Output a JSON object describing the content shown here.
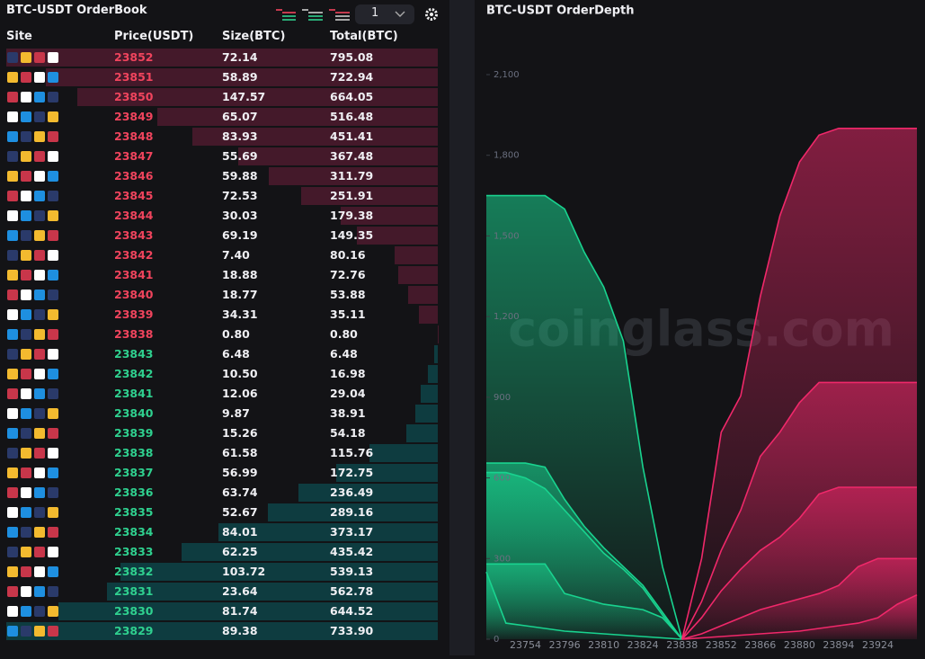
{
  "orderbook": {
    "title": "BTC-USDT OrderBook",
    "depth_select": "1",
    "columns": [
      "Site",
      "Price(USDT)",
      "Size(BTC)",
      "Total(BTC)"
    ],
    "asks": [
      [
        "23852",
        "72.14",
        "795.08"
      ],
      [
        "23851",
        "58.89",
        "722.94"
      ],
      [
        "23850",
        "147.57",
        "664.05"
      ],
      [
        "23849",
        "65.07",
        "516.48"
      ],
      [
        "23848",
        "83.93",
        "451.41"
      ],
      [
        "23847",
        "55.69",
        "367.48"
      ],
      [
        "23846",
        "59.88",
        "311.79"
      ],
      [
        "23845",
        "72.53",
        "251.91"
      ],
      [
        "23844",
        "30.03",
        "179.38"
      ],
      [
        "23843",
        "69.19",
        "149.35"
      ],
      [
        "23842",
        "7.40",
        "80.16"
      ],
      [
        "23841",
        "18.88",
        "72.76"
      ],
      [
        "23840",
        "18.77",
        "53.88"
      ],
      [
        "23839",
        "34.31",
        "35.11"
      ],
      [
        "23838",
        "0.80",
        "0.80"
      ]
    ],
    "bids": [
      [
        "23843",
        "6.48",
        "6.48"
      ],
      [
        "23842",
        "10.50",
        "16.98"
      ],
      [
        "23841",
        "12.06",
        "29.04"
      ],
      [
        "23840",
        "9.87",
        "38.91"
      ],
      [
        "23839",
        "15.26",
        "54.18"
      ],
      [
        "23838",
        "61.58",
        "115.76"
      ],
      [
        "23837",
        "56.99",
        "172.75"
      ],
      [
        "23836",
        "63.74",
        "236.49"
      ],
      [
        "23835",
        "52.67",
        "289.16"
      ],
      [
        "23834",
        "84.01",
        "373.17"
      ],
      [
        "23833",
        "62.25",
        "435.42"
      ],
      [
        "23832",
        "103.72",
        "539.13"
      ],
      [
        "23831",
        "23.64",
        "562.78"
      ],
      [
        "23830",
        "81.74",
        "644.52"
      ],
      [
        "23829",
        "89.38",
        "733.90"
      ]
    ]
  },
  "chart_data": {
    "type": "line",
    "title": "BTC-USDT OrderDepth",
    "watermark": "coinglass.com",
    "categories": [
      null,
      null,
      "23754",
      null,
      "23796",
      null,
      "23810",
      null,
      "23824",
      null,
      "23838",
      null,
      "23852",
      null,
      "23866",
      null,
      "23880",
      null,
      "23894",
      null,
      "23924",
      null,
      null
    ],
    "ylim": [
      0,
      2100
    ],
    "yticks": [
      0,
      300,
      600,
      900,
      {
        "value": 1200,
        "label": "1,200"
      },
      {
        "value": 1500,
        "label": "1,500"
      },
      {
        "value": 1800,
        "label": "1,800"
      },
      {
        "value": 2100,
        "label": "2,100"
      }
    ],
    "series": [
      {
        "color": "#19d38f",
        "values": [
          1650,
          1650,
          1650,
          1650,
          1600,
          1440,
          1310,
          1110,
          640,
          270,
          0,
          null,
          null,
          null,
          null,
          null,
          null,
          null,
          null,
          null,
          null,
          null,
          null
        ]
      },
      {
        "color": "#19d38f",
        "values": [
          655,
          655,
          655,
          640,
          520,
          420,
          340,
          270,
          200,
          100,
          0,
          null,
          null,
          null,
          null,
          null,
          null,
          null,
          null,
          null,
          null,
          null,
          null
        ]
      },
      {
        "color": "#19d38f",
        "values": [
          620,
          620,
          600,
          560,
          480,
          400,
          320,
          260,
          190,
          90,
          0,
          null,
          null,
          null,
          null,
          null,
          null,
          null,
          null,
          null,
          null,
          null,
          null
        ]
      },
      {
        "color": "#19d38f",
        "values": [
          280,
          280,
          280,
          280,
          170,
          150,
          130,
          120,
          110,
          80,
          0,
          null,
          null,
          null,
          null,
          null,
          null,
          null,
          null,
          null,
          null,
          null,
          null
        ]
      },
      {
        "color": "#19d38f",
        "values": [
          250,
          60,
          50,
          40,
          30,
          25,
          20,
          15,
          10,
          5,
          0,
          null,
          null,
          null,
          null,
          null,
          null,
          null,
          null,
          null,
          null,
          null,
          null
        ]
      },
      {
        "color": "#f0286a",
        "values": [
          null,
          null,
          null,
          null,
          null,
          null,
          null,
          null,
          null,
          null,
          0,
          300,
          770,
          905,
          1275,
          1575,
          1775,
          1875,
          1900,
          1900,
          1900,
          1900,
          1900
        ]
      },
      {
        "color": "#f0286a",
        "values": [
          null,
          null,
          null,
          null,
          null,
          null,
          null,
          null,
          null,
          null,
          0,
          140,
          330,
          480,
          680,
          770,
          880,
          955,
          955,
          955,
          955,
          955,
          955
        ]
      },
      {
        "color": "#f0286a",
        "values": [
          null,
          null,
          null,
          null,
          null,
          null,
          null,
          null,
          null,
          null,
          0,
          80,
          180,
          260,
          330,
          380,
          450,
          540,
          565,
          565,
          565,
          565,
          565
        ]
      },
      {
        "color": "#f0286a",
        "values": [
          null,
          null,
          null,
          null,
          null,
          null,
          null,
          null,
          null,
          null,
          0,
          20,
          50,
          80,
          110,
          130,
          150,
          170,
          200,
          270,
          300,
          300,
          300
        ]
      },
      {
        "color": "#f0286a",
        "values": [
          null,
          null,
          null,
          null,
          null,
          null,
          null,
          null,
          null,
          null,
          0,
          5,
          10,
          15,
          20,
          25,
          30,
          40,
          50,
          60,
          80,
          130,
          165
        ]
      }
    ]
  }
}
